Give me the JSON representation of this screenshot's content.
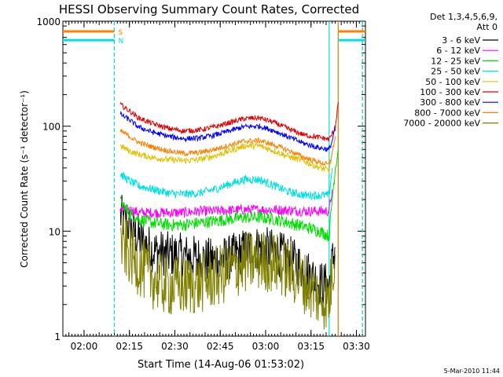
{
  "chart_data": {
    "type": "line",
    "title": "HESSI Observing Summary Count Rates, Corrected",
    "xlabel": "Start Time (14-Aug-06 01:53:02)",
    "ylabel": "Corrected Count Rate (s⁻¹ detector⁻¹)",
    "x_ticks": [
      "02:00",
      "02:15",
      "02:30",
      "02:45",
      "03:00",
      "03:15",
      "03:30"
    ],
    "x_tick_minutes": [
      7,
      22,
      37,
      52,
      67,
      82,
      97
    ],
    "xlim_minutes": [
      0,
      100
    ],
    "y_scale": "log",
    "ylim": [
      1,
      1000
    ],
    "y_ticks": [
      "1",
      "10",
      "100",
      "1000"
    ],
    "y_tick_values": [
      1,
      10,
      100,
      1000
    ],
    "legend_header": [
      "Det 1,3,4,5,6,9,",
      "Att 0"
    ],
    "legend_position": "right",
    "flags": [
      {
        "label": "S",
        "color": "#ff8000",
        "value": 800
      },
      {
        "label": "N",
        "color": "#00e0e0",
        "value": 660
      }
    ],
    "flag_intervals_minutes": [
      [
        0,
        17
      ],
      [
        91,
        100
      ]
    ],
    "vertical_markers_minutes": [
      {
        "x": 17,
        "color": "#ff8000",
        "dashed": true
      },
      {
        "x": 17,
        "color": "#00e0e0",
        "dashed": true
      },
      {
        "x": 91,
        "color": "#00e0e0",
        "dashed": false
      },
      {
        "x": 88,
        "color": "#00e0e0",
        "dashed": false
      },
      {
        "x": 91,
        "color": "#ff8000",
        "dashed": false
      },
      {
        "x": 99,
        "color": "#ff8000",
        "dashed": true
      },
      {
        "x": 99,
        "color": "#00e0e0",
        "dashed": true
      }
    ],
    "series": [
      {
        "name": "3 - 6 keV",
        "color": "#000000",
        "noise": 0.22,
        "points": [
          [
            19,
            14
          ],
          [
            22,
            11
          ],
          [
            26,
            8
          ],
          [
            30,
            6.5
          ],
          [
            35,
            6
          ],
          [
            40,
            5.8
          ],
          [
            45,
            5.5
          ],
          [
            50,
            5.2
          ],
          [
            55,
            5.6
          ],
          [
            60,
            6.5
          ],
          [
            65,
            7
          ],
          [
            70,
            6.3
          ],
          [
            75,
            5.5
          ],
          [
            80,
            4.3
          ],
          [
            85,
            3.2
          ],
          [
            88,
            3
          ],
          [
            89,
            5
          ],
          [
            90,
            7
          ]
        ]
      },
      {
        "name": "6 - 12 keV",
        "color": "#ff00ff",
        "noise": 0.05,
        "points": [
          [
            19,
            16
          ],
          [
            22,
            16
          ],
          [
            25,
            15
          ],
          [
            30,
            15
          ],
          [
            35,
            15
          ],
          [
            40,
            15
          ],
          [
            45,
            15.5
          ],
          [
            50,
            15.5
          ],
          [
            55,
            15.8
          ],
          [
            60,
            16
          ],
          [
            65,
            16
          ],
          [
            70,
            16
          ],
          [
            75,
            15.8
          ],
          [
            80,
            15.5
          ],
          [
            85,
            15.5
          ],
          [
            88,
            15.5
          ],
          [
            89,
            25
          ]
        ]
      },
      {
        "name": "12 - 25 keV",
        "color": "#00e000",
        "noise": 0.06,
        "points": [
          [
            19,
            19
          ],
          [
            22,
            15
          ],
          [
            25,
            13
          ],
          [
            30,
            12
          ],
          [
            35,
            11.5
          ],
          [
            40,
            11.5
          ],
          [
            45,
            12
          ],
          [
            50,
            12.5
          ],
          [
            55,
            13
          ],
          [
            60,
            13.5
          ],
          [
            65,
            13.5
          ],
          [
            70,
            13
          ],
          [
            75,
            12
          ],
          [
            80,
            11
          ],
          [
            85,
            10
          ],
          [
            88,
            9
          ],
          [
            89,
            20
          ],
          [
            90,
            40
          ],
          [
            91,
            60
          ]
        ]
      },
      {
        "name": "25 - 50 keV",
        "color": "#00e0e0",
        "noise": 0.04,
        "points": [
          [
            19,
            35
          ],
          [
            22,
            30
          ],
          [
            25,
            27
          ],
          [
            30,
            25
          ],
          [
            35,
            23
          ],
          [
            40,
            22.5
          ],
          [
            45,
            23
          ],
          [
            50,
            25
          ],
          [
            55,
            28
          ],
          [
            60,
            31
          ],
          [
            65,
            31
          ],
          [
            70,
            27
          ],
          [
            75,
            23.5
          ],
          [
            80,
            22
          ],
          [
            85,
            22
          ],
          [
            88,
            22
          ],
          [
            89,
            40
          ]
        ]
      },
      {
        "name": "50 - 100 keV",
        "color": "#e0c000",
        "noise": 0.03,
        "points": [
          [
            19,
            65
          ],
          [
            22,
            58
          ],
          [
            25,
            54
          ],
          [
            30,
            50
          ],
          [
            35,
            48
          ],
          [
            40,
            47
          ],
          [
            45,
            48
          ],
          [
            50,
            52
          ],
          [
            55,
            58
          ],
          [
            60,
            65
          ],
          [
            65,
            65
          ],
          [
            70,
            58
          ],
          [
            75,
            51
          ],
          [
            80,
            46
          ],
          [
            85,
            40
          ],
          [
            88,
            38
          ],
          [
            89,
            55
          ]
        ]
      },
      {
        "name": "100 - 300 keV",
        "color": "#e00000",
        "noise": 0.025,
        "points": [
          [
            19,
            160
          ],
          [
            22,
            140
          ],
          [
            25,
            120
          ],
          [
            30,
            105
          ],
          [
            35,
            95
          ],
          [
            40,
            90
          ],
          [
            45,
            92
          ],
          [
            50,
            98
          ],
          [
            55,
            108
          ],
          [
            60,
            118
          ],
          [
            65,
            120
          ],
          [
            70,
            108
          ],
          [
            75,
            93
          ],
          [
            80,
            82
          ],
          [
            85,
            78
          ],
          [
            88,
            75
          ],
          [
            90,
            95
          ],
          [
            91,
            170
          ]
        ]
      },
      {
        "name": "300 - 800 keV",
        "color": "#0000ff",
        "noise": 0.025,
        "points": [
          [
            19,
            130
          ],
          [
            22,
            115
          ],
          [
            25,
            98
          ],
          [
            30,
            87
          ],
          [
            35,
            80
          ],
          [
            40,
            76
          ],
          [
            45,
            77
          ],
          [
            50,
            82
          ],
          [
            55,
            90
          ],
          [
            60,
            99
          ],
          [
            65,
            100
          ],
          [
            70,
            90
          ],
          [
            75,
            78
          ],
          [
            80,
            68
          ],
          [
            85,
            62
          ],
          [
            88,
            60
          ],
          [
            89,
            72
          ],
          [
            90,
            100
          ]
        ]
      },
      {
        "name": "800 - 7000 keV",
        "color": "#ff8000",
        "noise": 0.025,
        "points": [
          [
            19,
            90
          ],
          [
            22,
            80
          ],
          [
            25,
            70
          ],
          [
            30,
            63
          ],
          [
            35,
            58
          ],
          [
            40,
            55
          ],
          [
            45,
            56
          ],
          [
            50,
            60
          ],
          [
            55,
            66
          ],
          [
            60,
            72
          ],
          [
            65,
            73
          ],
          [
            70,
            66
          ],
          [
            75,
            58
          ],
          [
            80,
            50
          ],
          [
            85,
            45
          ],
          [
            88,
            43
          ],
          [
            89,
            55
          ],
          [
            90,
            80
          ]
        ]
      },
      {
        "name": "7000 - 20000 keV",
        "color": "#808000",
        "noise": 0.3,
        "points": [
          [
            19,
            8
          ],
          [
            22,
            6
          ],
          [
            26,
            4.5
          ],
          [
            30,
            3.5
          ],
          [
            35,
            3
          ],
          [
            40,
            3
          ],
          [
            45,
            3.2
          ],
          [
            50,
            3.6
          ],
          [
            55,
            4.2
          ],
          [
            60,
            5
          ],
          [
            65,
            5.3
          ],
          [
            70,
            5
          ],
          [
            75,
            4.2
          ],
          [
            80,
            3.2
          ],
          [
            85,
            2.3
          ],
          [
            88,
            2.2
          ],
          [
            89,
            4
          ],
          [
            90,
            6
          ]
        ]
      }
    ]
  },
  "footer": {
    "timestamp": "5-Mar-2010 11:44"
  }
}
